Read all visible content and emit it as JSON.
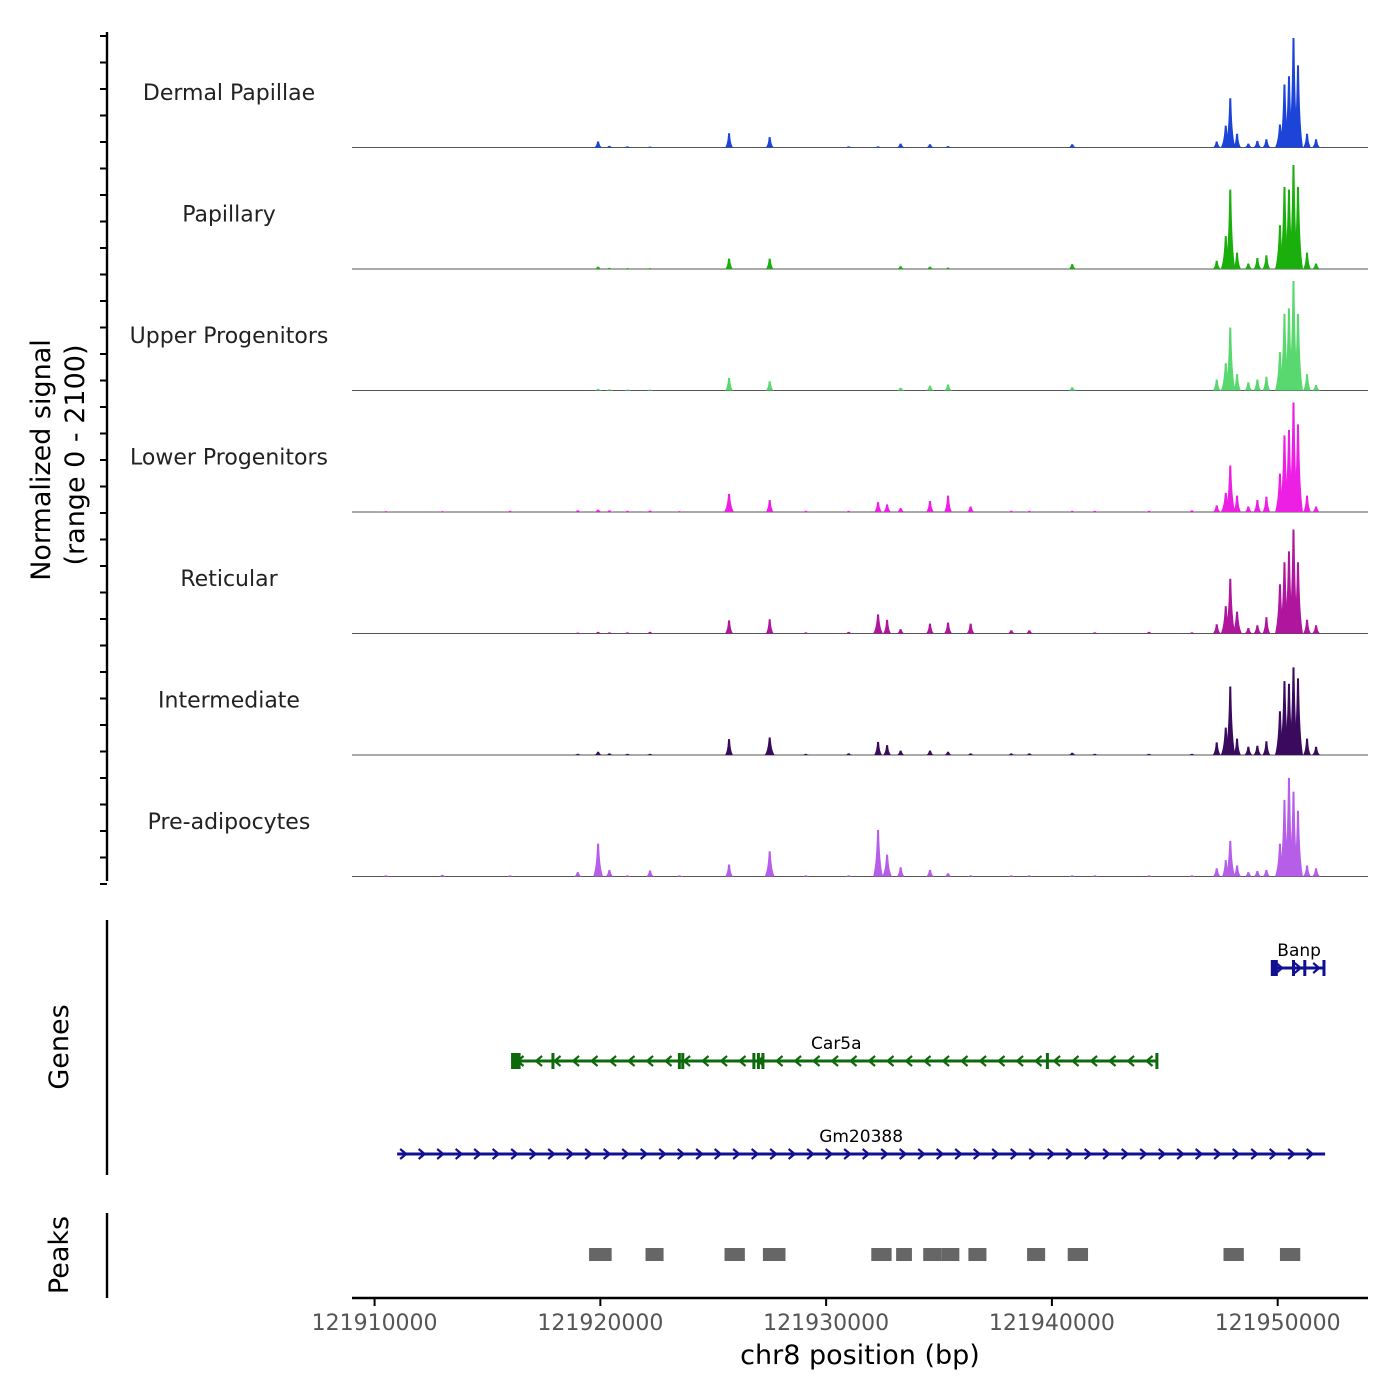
{
  "chart_data": {
    "type": "area",
    "title": "",
    "xlabel": "chr8 position (bp)",
    "xlim": [
      121909000,
      121954000
    ],
    "x_ticks": [
      121910000,
      121920000,
      121930000,
      121940000,
      121950000
    ],
    "x_tick_labels": [
      "121910000",
      "121920000",
      "121930000",
      "121940000",
      "121950000"
    ],
    "coverage": {
      "ylabel_line1": "Normalized signal",
      "ylabel_line2": "(range 0 - 2100)",
      "ylim": [
        0,
        2100
      ],
      "peak_positions": [
        121910500,
        121913000,
        121916000,
        121919000,
        121919900,
        121920400,
        121921200,
        121922200,
        121923500,
        121925700,
        121927500,
        121929100,
        121931000,
        121932300,
        121932700,
        121933300,
        121934600,
        121935400,
        121936400,
        121938200,
        121939000,
        121940900,
        121941900,
        121944300,
        121946200,
        121947300,
        121947700,
        121947900,
        121948200,
        121948700,
        121949100,
        121949500,
        121950100,
        121950300,
        121950500,
        121950700,
        121950900,
        121951300,
        121951700
      ],
      "series": [
        {
          "name": "Dermal Papillae",
          "color": "#1c44d8",
          "values": [
            5,
            5,
            5,
            8,
            110,
            30,
            20,
            15,
            5,
            260,
            190,
            10,
            20,
            20,
            10,
            70,
            60,
            25,
            10,
            10,
            10,
            60,
            10,
            10,
            10,
            110,
            400,
            900,
            250,
            70,
            120,
            150,
            420,
            1150,
            1300,
            2000,
            1500,
            250,
            150
          ]
        },
        {
          "name": "Papillary",
          "color": "#1aaf0c",
          "values": [
            5,
            5,
            5,
            5,
            40,
            20,
            15,
            15,
            5,
            190,
            190,
            10,
            10,
            10,
            10,
            50,
            40,
            25,
            10,
            10,
            10,
            90,
            10,
            10,
            10,
            150,
            600,
            1450,
            300,
            100,
            200,
            250,
            800,
            1500,
            1450,
            1900,
            1500,
            300,
            100
          ]
        },
        {
          "name": "Upper Progenitors",
          "color": "#58d86e",
          "values": [
            5,
            5,
            5,
            5,
            30,
            20,
            15,
            15,
            5,
            230,
            170,
            10,
            10,
            10,
            10,
            50,
            90,
            110,
            10,
            10,
            10,
            60,
            10,
            10,
            10,
            200,
            500,
            1150,
            300,
            150,
            200,
            250,
            700,
            1400,
            1500,
            2000,
            1400,
            300,
            100
          ]
        },
        {
          "name": "Lower Progenitors",
          "color": "#ee1fe4",
          "values": [
            15,
            15,
            20,
            30,
            40,
            30,
            20,
            25,
            15,
            330,
            220,
            20,
            20,
            180,
            140,
            70,
            200,
            300,
            100,
            20,
            20,
            20,
            20,
            20,
            30,
            120,
            350,
            850,
            300,
            100,
            220,
            280,
            700,
            1400,
            1500,
            2000,
            1600,
            300,
            100
          ]
        },
        {
          "name": "Reticular",
          "color": "#b0169d",
          "values": [
            10,
            10,
            10,
            15,
            30,
            20,
            20,
            30,
            10,
            240,
            260,
            20,
            30,
            350,
            250,
            80,
            180,
            200,
            180,
            60,
            60,
            10,
            20,
            30,
            20,
            170,
            500,
            1000,
            400,
            100,
            150,
            300,
            900,
            1300,
            1500,
            1900,
            1300,
            250,
            150
          ]
        },
        {
          "name": "Intermediate",
          "color": "#3a0a5e",
          "values": [
            10,
            10,
            10,
            20,
            60,
            30,
            20,
            20,
            10,
            290,
            320,
            20,
            30,
            240,
            180,
            80,
            80,
            60,
            30,
            30,
            30,
            40,
            20,
            20,
            20,
            230,
            500,
            1250,
            300,
            150,
            170,
            250,
            800,
            1350,
            1300,
            1600,
            1400,
            300,
            150
          ]
        },
        {
          "name": "Pre-adipocytes",
          "color": "#b65ee8",
          "values": [
            20,
            30,
            20,
            80,
            600,
            120,
            20,
            110,
            20,
            220,
            460,
            20,
            20,
            850,
            400,
            170,
            120,
            60,
            20,
            20,
            20,
            20,
            20,
            20,
            20,
            150,
            300,
            650,
            200,
            80,
            100,
            120,
            600,
            1400,
            1800,
            1550,
            1200,
            200,
            150
          ]
        }
      ]
    },
    "genes": {
      "ylabel": "Genes",
      "items": [
        {
          "name": "Banp",
          "strand": "+",
          "start": 121949800,
          "end": 121952100,
          "color": "#101090",
          "exons": [
            121949850,
            121950700,
            121951200,
            121952050
          ]
        },
        {
          "name": "Car5a",
          "strand": "-",
          "start": 121916200,
          "end": 121944700,
          "color": "#0c6a0c",
          "exons": [
            121916200,
            121916400,
            121917900,
            121923500,
            121923650,
            121926800,
            121927000,
            121927200,
            121939800,
            121944650
          ]
        },
        {
          "name": "Gm20388",
          "strand": "+",
          "start": 121911000,
          "end": 121952100,
          "color": "#101090",
          "exons": []
        }
      ]
    },
    "peaks": {
      "ylabel": "Peaks",
      "color": "#666666",
      "intervals": [
        [
          121919500,
          121920500
        ],
        [
          121922000,
          121922800
        ],
        [
          121925500,
          121926400
        ],
        [
          121927200,
          121928200
        ],
        [
          121932000,
          121932900
        ],
        [
          121933100,
          121933800
        ],
        [
          121934300,
          121935100
        ],
        [
          121935100,
          121935900
        ],
        [
          121936300,
          121937100
        ],
        [
          121938900,
          121939700
        ],
        [
          121940700,
          121941600
        ],
        [
          121947600,
          121948500
        ],
        [
          121950100,
          121951000
        ]
      ]
    }
  }
}
